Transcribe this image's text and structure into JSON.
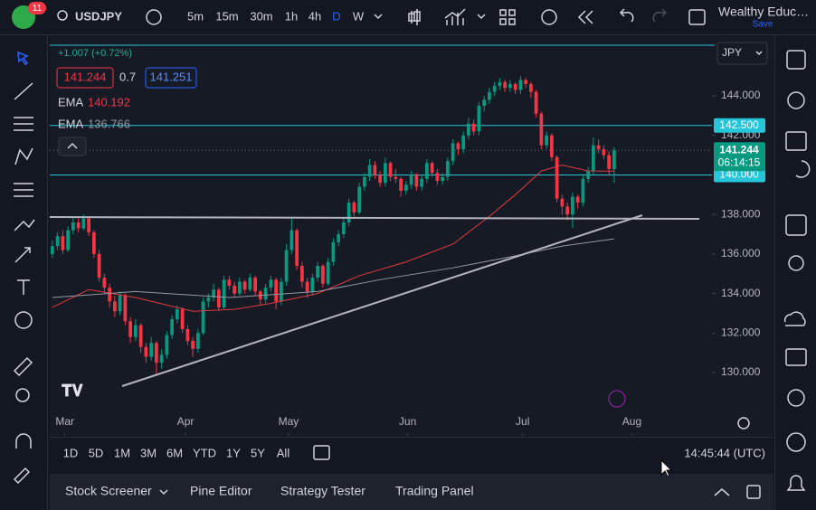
{
  "topbar": {
    "badge": "11",
    "symbol": "USDJPY",
    "timeframes": [
      "5m",
      "15m",
      "30m",
      "1h",
      "4h",
      "D",
      "W"
    ],
    "active_timeframe": "D",
    "account": "Wealthy Educ…",
    "save": "Save"
  },
  "legend": {
    "change": "+1.007 (+0.72%)",
    "bid": "141.244",
    "spread": "0.7",
    "ask": "141.251",
    "ema1": "140.192",
    "ema2": "136.766"
  },
  "currency": "JPY",
  "chart_data": {
    "type": "candlestick",
    "up_color": "#089981",
    "down_color": "#f23645",
    "candles": [
      [
        136.0,
        136.7,
        135.8,
        136.4
      ],
      [
        136.4,
        137.1,
        136.2,
        136.9
      ],
      [
        136.9,
        137.2,
        136.0,
        136.2
      ],
      [
        136.2,
        137.4,
        136.1,
        137.2
      ],
      [
        137.2,
        137.9,
        137.0,
        137.6
      ],
      [
        137.6,
        137.8,
        137.1,
        137.3
      ],
      [
        137.3,
        138.0,
        137.2,
        137.8
      ],
      [
        137.8,
        137.9,
        136.9,
        137.1
      ],
      [
        137.1,
        137.2,
        135.8,
        136.0
      ],
      [
        136.0,
        136.2,
        134.6,
        134.8
      ],
      [
        134.8,
        135.0,
        134.0,
        134.3
      ],
      [
        134.3,
        134.5,
        133.3,
        133.6
      ],
      [
        133.6,
        133.9,
        132.8,
        133.1
      ],
      [
        133.1,
        134.1,
        132.9,
        133.9
      ],
      [
        133.9,
        134.0,
        132.4,
        132.6
      ],
      [
        132.6,
        132.8,
        131.5,
        131.8
      ],
      [
        131.8,
        132.7,
        131.6,
        132.4
      ],
      [
        132.4,
        132.5,
        131.0,
        131.3
      ],
      [
        131.3,
        131.5,
        130.5,
        130.8
      ],
      [
        130.8,
        131.8,
        130.6,
        131.5
      ],
      [
        131.5,
        131.6,
        129.9,
        130.5
      ],
      [
        130.5,
        131.2,
        130.2,
        130.9
      ],
      [
        130.9,
        132.1,
        130.7,
        131.9
      ],
      [
        131.9,
        132.9,
        131.7,
        132.7
      ],
      [
        132.7,
        133.4,
        132.5,
        133.2
      ],
      [
        133.2,
        133.3,
        132.0,
        132.2
      ],
      [
        132.2,
        132.4,
        131.4,
        131.6
      ],
      [
        131.6,
        131.8,
        130.8,
        131.2
      ],
      [
        131.2,
        132.2,
        131.0,
        132.0
      ],
      [
        132.0,
        133.8,
        131.9,
        133.6
      ],
      [
        133.6,
        134.0,
        133.3,
        133.8
      ],
      [
        133.8,
        134.5,
        133.6,
        134.2
      ],
      [
        134.2,
        134.3,
        133.1,
        133.3
      ],
      [
        133.3,
        134.9,
        133.2,
        134.7
      ],
      [
        134.7,
        134.9,
        134.2,
        134.4
      ],
      [
        134.4,
        134.6,
        133.8,
        134.0
      ],
      [
        134.0,
        134.8,
        133.9,
        134.6
      ],
      [
        134.6,
        134.7,
        134.0,
        134.2
      ],
      [
        134.2,
        135.0,
        134.1,
        134.8
      ],
      [
        134.8,
        134.9,
        133.9,
        134.1
      ],
      [
        134.1,
        134.2,
        133.4,
        133.7
      ],
      [
        133.7,
        134.5,
        133.5,
        134.3
      ],
      [
        134.3,
        134.9,
        134.1,
        134.7
      ],
      [
        134.7,
        134.8,
        133.2,
        133.6
      ],
      [
        133.6,
        134.8,
        133.4,
        134.6
      ],
      [
        134.6,
        136.5,
        134.4,
        136.2
      ],
      [
        136.2,
        137.8,
        136.0,
        137.2
      ],
      [
        137.2,
        137.3,
        135.2,
        135.4
      ],
      [
        135.4,
        135.6,
        134.3,
        134.6
      ],
      [
        134.6,
        134.8,
        133.8,
        134.1
      ],
      [
        134.1,
        135.0,
        133.9,
        134.8
      ],
      [
        134.8,
        135.6,
        134.6,
        135.4
      ],
      [
        135.4,
        135.5,
        134.3,
        134.5
      ],
      [
        134.5,
        135.8,
        134.4,
        135.6
      ],
      [
        135.6,
        136.8,
        135.4,
        136.6
      ],
      [
        136.6,
        137.2,
        136.4,
        137.0
      ],
      [
        137.0,
        137.8,
        136.8,
        137.6
      ],
      [
        137.6,
        138.8,
        137.4,
        138.6
      ],
      [
        138.6,
        138.7,
        137.9,
        138.1
      ],
      [
        138.1,
        139.6,
        138.0,
        139.4
      ],
      [
        139.4,
        140.1,
        139.2,
        139.9
      ],
      [
        139.9,
        140.8,
        139.7,
        140.5
      ],
      [
        140.5,
        140.7,
        139.8,
        140.0
      ],
      [
        140.0,
        140.2,
        139.4,
        139.6
      ],
      [
        139.6,
        140.9,
        139.4,
        140.6
      ],
      [
        140.6,
        140.7,
        139.7,
        139.9
      ],
      [
        139.9,
        140.3,
        139.6,
        139.8
      ],
      [
        139.8,
        139.9,
        138.9,
        139.2
      ],
      [
        139.2,
        139.7,
        139.0,
        139.5
      ],
      [
        139.5,
        140.2,
        139.3,
        140.0
      ],
      [
        140.0,
        140.1,
        139.2,
        139.4
      ],
      [
        139.4,
        140.0,
        139.2,
        139.8
      ],
      [
        139.8,
        140.8,
        139.6,
        140.6
      ],
      [
        140.6,
        140.7,
        139.9,
        140.1
      ],
      [
        140.1,
        140.3,
        139.5,
        139.7
      ],
      [
        139.7,
        140.1,
        139.5,
        139.9
      ],
      [
        139.9,
        140.9,
        139.7,
        140.7
      ],
      [
        140.7,
        141.8,
        140.5,
        141.6
      ],
      [
        141.6,
        141.7,
        141.0,
        141.3
      ],
      [
        141.3,
        142.2,
        141.1,
        142.0
      ],
      [
        142.0,
        142.9,
        141.8,
        142.6
      ],
      [
        142.6,
        142.8,
        142.0,
        142.2
      ],
      [
        142.2,
        143.7,
        142.0,
        143.5
      ],
      [
        143.5,
        144.0,
        143.2,
        143.8
      ],
      [
        143.8,
        144.4,
        143.6,
        144.2
      ],
      [
        144.2,
        144.7,
        144.0,
        144.5
      ],
      [
        144.5,
        144.9,
        144.3,
        144.7
      ],
      [
        144.7,
        144.8,
        144.2,
        144.4
      ],
      [
        144.4,
        144.8,
        144.2,
        144.6
      ],
      [
        144.6,
        144.7,
        144.1,
        144.3
      ],
      [
        144.3,
        145.0,
        144.1,
        144.8
      ],
      [
        144.8,
        144.9,
        144.4,
        144.6
      ],
      [
        144.6,
        144.7,
        143.9,
        144.2
      ],
      [
        144.2,
        144.3,
        142.9,
        143.1
      ],
      [
        143.1,
        143.2,
        141.3,
        141.5
      ],
      [
        141.5,
        142.2,
        141.3,
        142.0
      ],
      [
        142.0,
        142.1,
        140.7,
        140.9
      ],
      [
        140.9,
        141.0,
        138.6,
        138.8
      ],
      [
        138.8,
        139.0,
        138.0,
        138.4
      ],
      [
        138.4,
        138.6,
        137.7,
        138.0
      ],
      [
        138.0,
        139.1,
        137.3,
        138.9
      ],
      [
        138.9,
        139.0,
        138.3,
        138.6
      ],
      [
        138.6,
        140.0,
        138.4,
        139.8
      ],
      [
        139.8,
        140.4,
        139.6,
        140.2
      ],
      [
        140.2,
        141.9,
        140.0,
        141.5
      ],
      [
        141.5,
        141.8,
        141.1,
        141.3
      ],
      [
        141.3,
        141.5,
        140.8,
        141.0
      ],
      [
        141.0,
        141.2,
        140.0,
        140.3
      ],
      [
        140.3,
        141.4,
        139.6,
        141.244
      ]
    ],
    "series": [
      {
        "name": "EMA",
        "color": "#e0393e",
        "x": [
          0,
          7,
          16,
          27,
          35,
          42,
          51,
          59,
          68,
          77,
          84,
          89,
          94,
          98,
          103,
          108
        ],
        "values": [
          133.3,
          134.2,
          133.8,
          133.1,
          133.2,
          133.5,
          134.0,
          134.9,
          135.6,
          136.5,
          137.9,
          139.0,
          140.2,
          140.5,
          140.2,
          140.192
        ]
      },
      {
        "name": "EMA",
        "color": "#9598a1",
        "x": [
          0,
          16,
          34,
          51,
          63,
          77,
          87,
          98,
          108
        ],
        "values": [
          133.8,
          134.1,
          133.8,
          134.1,
          134.7,
          135.3,
          135.8,
          136.4,
          136.766
        ]
      }
    ],
    "xlim": [
      -0.5,
      126.8
    ],
    "xticks": [
      {
        "value": 2.4,
        "label": "Mar"
      },
      {
        "value": 25.6,
        "label": "Apr"
      },
      {
        "value": 45.4,
        "label": "May"
      },
      {
        "value": 68.3,
        "label": "Jun"
      },
      {
        "value": 90.4,
        "label": "Jul"
      },
      {
        "value": 111.4,
        "label": "Aug"
      }
    ],
    "ylim": [
      126.8,
      147.02
    ],
    "yticks": [
      {
        "value": 130,
        "label": "130.000"
      },
      {
        "value": 132,
        "label": "132.000"
      },
      {
        "value": 134,
        "label": "134.000"
      },
      {
        "value": 136,
        "label": "136.000"
      },
      {
        "value": 138,
        "label": "138.000"
      },
      {
        "value": 142,
        "label": "142.000"
      },
      {
        "value": 144,
        "label": "144.000"
      }
    ],
    "levels": [
      {
        "value": 142.5,
        "label": "142.500"
      },
      {
        "value": 140,
        "label": "140.000"
      }
    ],
    "level_color": "#26c6da",
    "last_price": 141.244,
    "countdown": "06:14:15"
  },
  "timebar": {
    "ranges": [
      "1D",
      "5D",
      "1M",
      "3M",
      "6M",
      "YTD",
      "1Y",
      "5Y",
      "All"
    ],
    "clock": "14:45:44 (UTC)"
  },
  "bottom_panel": {
    "tabs": [
      "Stock Screener",
      "Pine Editor",
      "Strategy Tester",
      "Trading Panel"
    ]
  }
}
